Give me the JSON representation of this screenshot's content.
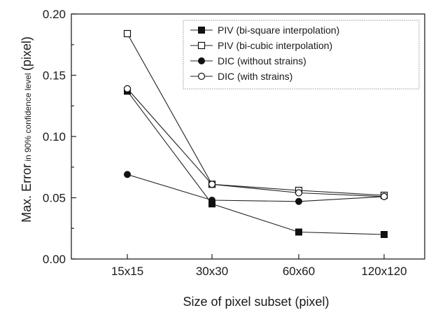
{
  "chart_data": {
    "type": "line",
    "categories": [
      "15x15",
      "30x30",
      "60x60",
      "120x120"
    ],
    "xlabel": "Size of pixel subset (pixel)",
    "ylabel_main": "Max. Error",
    "ylabel_sub": " in 90% confidence level ",
    "ylabel_unit": "(pixel)",
    "ylim": [
      0.0,
      0.2
    ],
    "yticks": [
      "0.00",
      "0.05",
      "0.10",
      "0.15",
      "0.20"
    ],
    "grid": false,
    "legend_position": "top-right",
    "series": [
      {
        "name": "PIV (bi-square interpolation)",
        "marker": "filled-square",
        "values": [
          0.137,
          0.045,
          0.022,
          0.02
        ]
      },
      {
        "name": "PIV (bi-cubic interpolation)",
        "marker": "open-square",
        "values": [
          0.184,
          0.061,
          0.056,
          0.052
        ]
      },
      {
        "name": "DIC (without strains)",
        "marker": "filled-circle",
        "values": [
          0.069,
          0.048,
          0.047,
          0.051
        ]
      },
      {
        "name": "DIC (with strains)",
        "marker": "open-circle",
        "values": [
          0.139,
          0.061,
          0.054,
          0.051
        ]
      }
    ]
  }
}
